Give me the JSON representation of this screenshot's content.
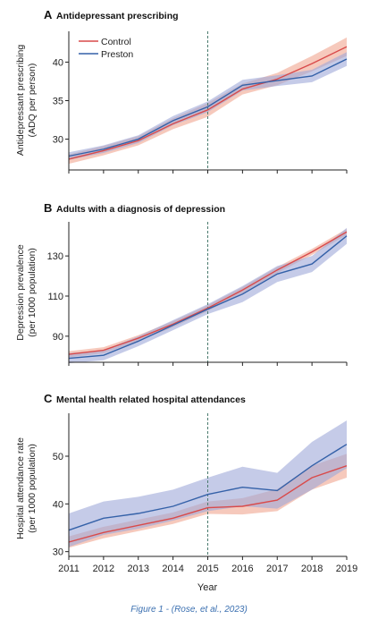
{
  "caption": "Figure 1 - (Rose, et al., 2023)",
  "colors": {
    "control": "#d94a4a",
    "control_band": "#f3b7a6",
    "preston": "#3461a8",
    "preston_band": "#9fa9d9",
    "divider": "#4a7a6e"
  },
  "chart_data": [
    {
      "type": "line",
      "letter": "A",
      "title": "Antidepressant prescribing",
      "ylabel": [
        "Antidepressant prescribing",
        "(ADQ per person)"
      ],
      "ylim": [
        26,
        44
      ],
      "yticks": [
        30,
        35,
        40
      ],
      "x": [
        2011,
        2012,
        2013,
        2014,
        2015,
        2016,
        2017,
        2018,
        2019
      ],
      "vline": 2015,
      "legend": {
        "position": "top-left",
        "entries": [
          "Control",
          "Preston"
        ]
      },
      "series": [
        {
          "name": "Control",
          "values": [
            27.4,
            28.5,
            29.8,
            32.0,
            33.8,
            36.5,
            37.8,
            39.8,
            42.0
          ],
          "lower": [
            26.8,
            27.9,
            29.2,
            31.3,
            32.9,
            35.8,
            37.0,
            38.8,
            40.8
          ],
          "upper": [
            28.0,
            29.1,
            30.4,
            32.7,
            34.7,
            37.2,
            38.6,
            40.8,
            43.2
          ]
        },
        {
          "name": "Preston",
          "values": [
            27.8,
            28.7,
            30.0,
            32.4,
            34.2,
            37.0,
            37.6,
            38.2,
            40.4
          ],
          "lower": [
            27.3,
            28.2,
            29.5,
            31.8,
            33.5,
            36.3,
            36.9,
            37.4,
            39.5
          ],
          "upper": [
            28.3,
            29.2,
            30.5,
            33.0,
            34.9,
            37.7,
            38.3,
            39.0,
            41.3
          ]
        }
      ]
    },
    {
      "type": "line",
      "letter": "B",
      "title": "Adults with a diagnosis of depression",
      "ylabel": [
        "Depression prevalence",
        "(per 1000 population)"
      ],
      "ylim": [
        77,
        147
      ],
      "yticks": [
        90,
        110,
        130
      ],
      "x": [
        2011,
        2012,
        2013,
        2014,
        2015,
        2016,
        2017,
        2018,
        2019
      ],
      "vline": 2015,
      "series": [
        {
          "name": "Control",
          "values": [
            81,
            83,
            89,
            96,
            104,
            113,
            123,
            132,
            142
          ],
          "lower": [
            79.5,
            81.5,
            87.5,
            94.5,
            102.5,
            111.5,
            121.5,
            130.5,
            140.5
          ],
          "upper": [
            82.5,
            84.5,
            90.5,
            97.5,
            105.5,
            114.5,
            124.5,
            133.5,
            143.5
          ]
        },
        {
          "name": "Preston",
          "values": [
            79,
            80.5,
            87.5,
            95.5,
            103.5,
            111,
            121,
            126,
            140
          ],
          "lower": [
            76.5,
            78,
            85,
            93,
            101,
            107,
            117,
            122,
            136
          ],
          "upper": [
            81.5,
            83,
            90,
            98,
            106,
            115,
            125,
            130,
            144
          ]
        }
      ]
    },
    {
      "type": "line",
      "letter": "C",
      "title": "Mental health related hospital attendances",
      "ylabel": [
        "Hospital attendance rate",
        "(per 1000 population)"
      ],
      "ylim": [
        29,
        59
      ],
      "yticks": [
        30,
        40,
        50
      ],
      "x": [
        2011,
        2012,
        2013,
        2014,
        2015,
        2016,
        2017,
        2018,
        2019
      ],
      "vline": 2015,
      "xlabel": "Year",
      "series": [
        {
          "name": "Control",
          "values": [
            32.0,
            34.0,
            35.5,
            37.0,
            39.2,
            39.5,
            40.8,
            45.5,
            48.0
          ],
          "lower": [
            30.8,
            32.8,
            34.3,
            35.8,
            37.9,
            37.8,
            38.5,
            43.0,
            45.5
          ],
          "upper": [
            33.2,
            35.2,
            36.7,
            38.2,
            40.5,
            41.2,
            43.1,
            48.0,
            50.5
          ]
        },
        {
          "name": "Preston",
          "values": [
            34.5,
            37.0,
            38.0,
            39.5,
            42.0,
            43.5,
            42.8,
            48.0,
            52.5
          ],
          "lower": [
            31.0,
            33.5,
            34.8,
            36.5,
            38.5,
            39.5,
            39.0,
            43.0,
            47.5
          ],
          "upper": [
            38.0,
            40.5,
            41.5,
            43.0,
            45.5,
            47.8,
            46.5,
            53.0,
            57.5
          ]
        }
      ]
    }
  ]
}
